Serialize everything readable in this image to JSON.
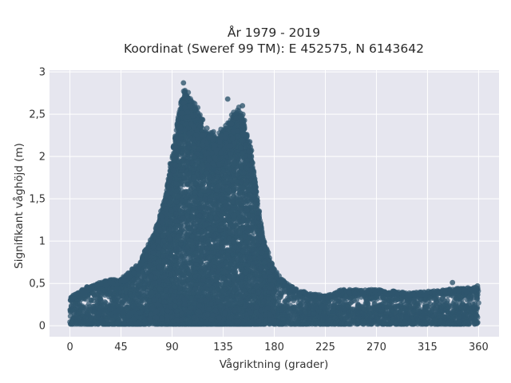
{
  "chart_data": {
    "type": "scatter",
    "title_line1": "År 1979 - 2019",
    "title_line2": "Koordinat (Sweref 99 TM): E 452575, N 6143642",
    "xlabel": "Vågriktning (grader)",
    "ylabel": "Signifikant våghöjd (m)",
    "xlim": [
      -18,
      378
    ],
    "ylim": [
      -0.13,
      3.02
    ],
    "x_ticks": [
      0,
      45,
      90,
      135,
      180,
      225,
      270,
      315,
      360
    ],
    "x_tick_labels": [
      "0",
      "45",
      "90",
      "135",
      "180",
      "225",
      "270",
      "315",
      "360"
    ],
    "y_ticks": [
      0,
      0.5,
      1,
      1.5,
      2,
      2.5,
      3
    ],
    "y_tick_labels": [
      "0",
      "0,5",
      "1",
      "1,5",
      "2",
      "2,5",
      "3"
    ],
    "grid": true,
    "legend": "none",
    "point_color": "#2f566d",
    "background_color": "#e6e6ef",
    "envelope": {
      "direction_deg": [
        0,
        15,
        30,
        45,
        60,
        75,
        85,
        95,
        100,
        110,
        120,
        130,
        140,
        150,
        160,
        170,
        180,
        190,
        200,
        210,
        225,
        240,
        270,
        300,
        330,
        360
      ],
      "max_height_m": [
        0.33,
        0.45,
        0.52,
        0.55,
        0.72,
        1.1,
        1.6,
        2.45,
        2.8,
        2.62,
        2.3,
        2.22,
        2.42,
        2.58,
        2.05,
        1.05,
        0.65,
        0.5,
        0.42,
        0.38,
        0.35,
        0.42,
        0.42,
        0.38,
        0.42,
        0.45
      ]
    },
    "notable_points": [
      {
        "x": 100,
        "y": 2.87
      },
      {
        "x": 139,
        "y": 2.68
      },
      {
        "x": 152,
        "y": 2.6
      },
      {
        "x": 337,
        "y": 0.51
      },
      {
        "x": 359,
        "y": 0.47
      }
    ]
  }
}
